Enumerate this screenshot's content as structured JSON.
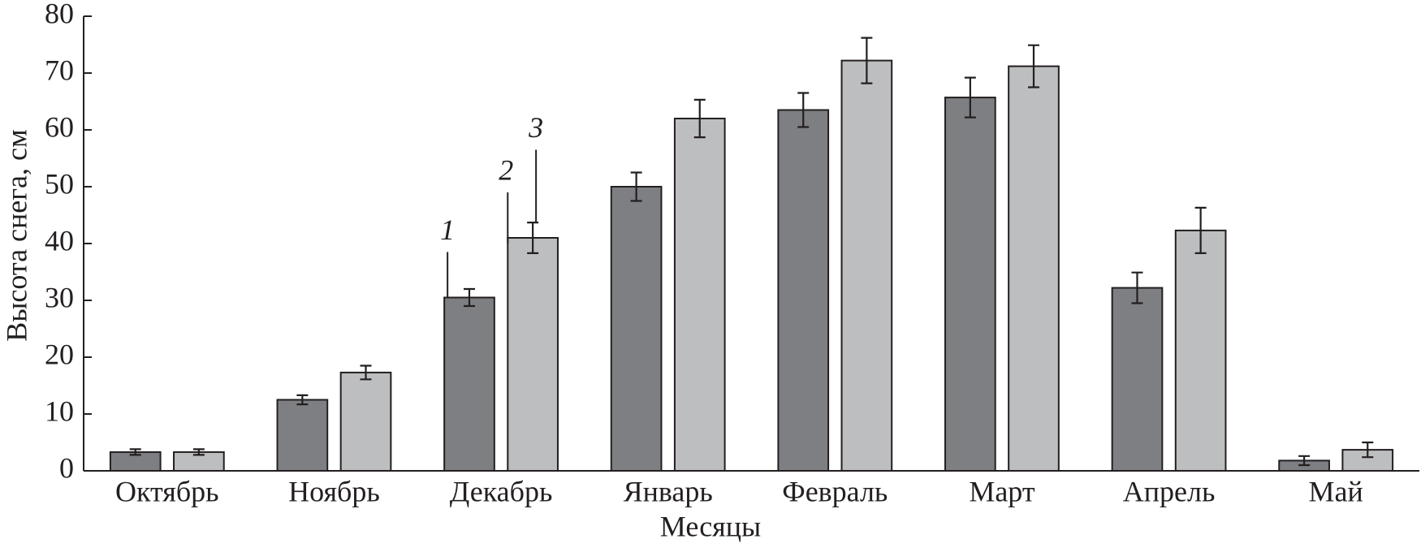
{
  "chart_data": {
    "type": "bar",
    "x_label": "Месяцы",
    "y_label": "Высота снега, см",
    "categories": [
      "Октябрь",
      "Ноябрь",
      "Декабрь",
      "Январь",
      "Февраль",
      "Март",
      "Апрель",
      "Май"
    ],
    "series": [
      {
        "color": "#7e7f83",
        "values": [
          3.3,
          12.5,
          30.5,
          50,
          63.5,
          65.7,
          32.2,
          1.8
        ],
        "errors": [
          0.5,
          0.8,
          1.5,
          2.5,
          3,
          3.5,
          2.7,
          0.8
        ]
      },
      {
        "color": "#bdbec0",
        "values": [
          3.3,
          17.3,
          41,
          62,
          72.2,
          71.2,
          42.3,
          3.7
        ],
        "errors": [
          0.5,
          1.2,
          2.7,
          3.3,
          4,
          3.7,
          4,
          1.3
        ]
      }
    ],
    "annotations": [
      "1",
      "2",
      "3"
    ],
    "ylim": [
      0,
      80
    ],
    "yticks": [
      0,
      10,
      20,
      30,
      40,
      50,
      60,
      70,
      80
    ]
  }
}
